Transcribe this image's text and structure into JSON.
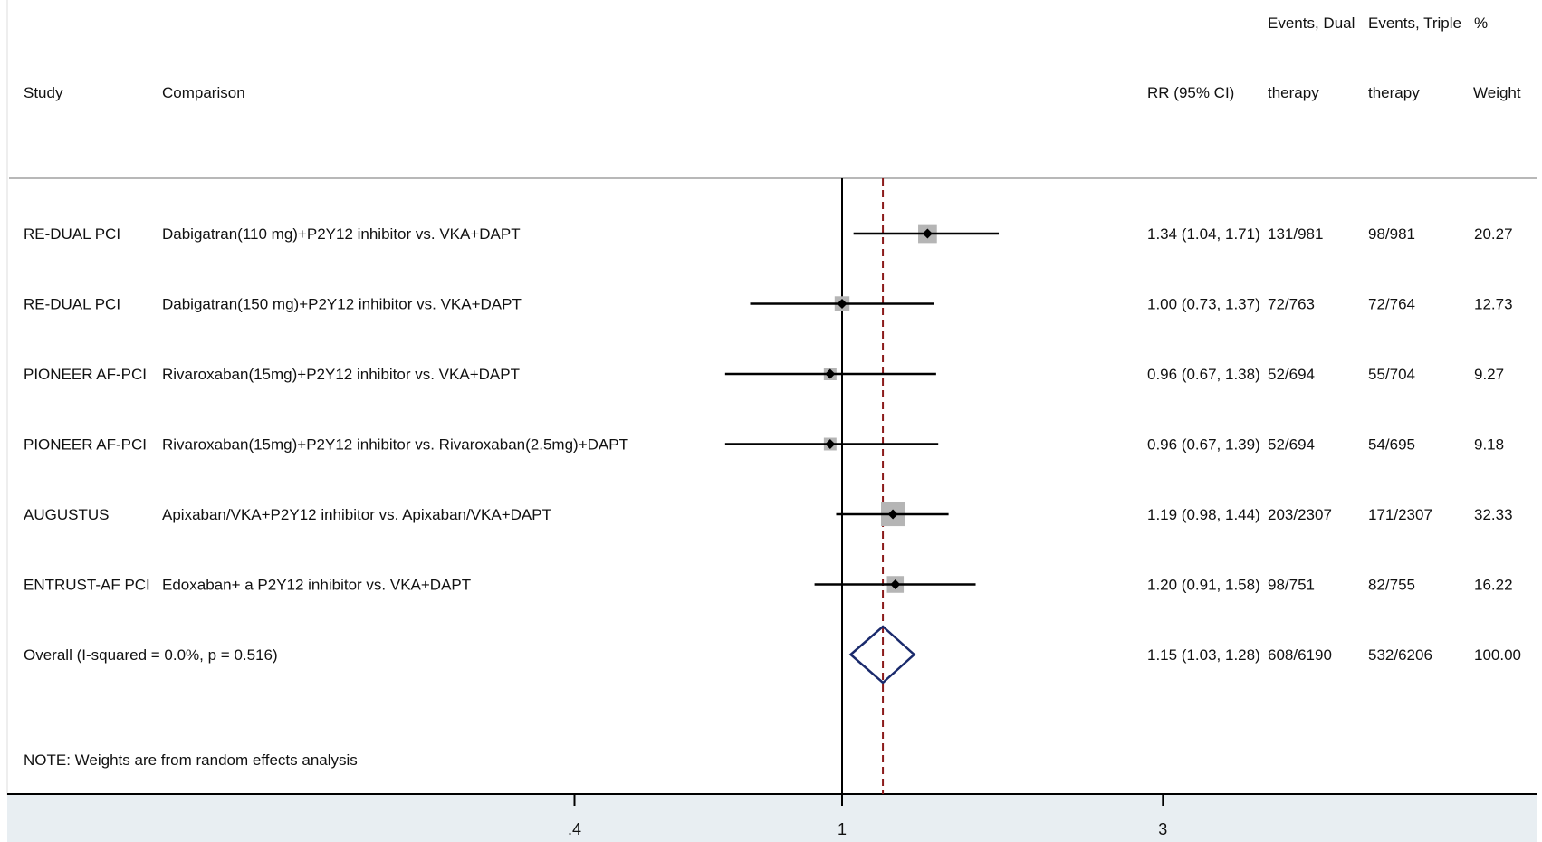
{
  "chart_data": {
    "type": "forest",
    "x_scale": "log",
    "xticks": [
      0.4,
      1,
      3
    ],
    "xtick_labels": [
      ".4",
      "1",
      "3"
    ],
    "null_value": 1,
    "overall_line": 1.15,
    "headers": {
      "study": "Study",
      "comparison": "Comparison",
      "rr": "RR (95% CI)",
      "dual_top": "Events, Dual",
      "dual_bottom": "therapy",
      "triple_top": "Events, Triple",
      "triple_bottom": "therapy",
      "weight_top": "%",
      "weight_bottom": "Weight"
    },
    "studies": [
      {
        "study": "RE-DUAL PCI",
        "comparison": "Dabigatran(110 mg)+P2Y12 inhibitor vs. VKA+DAPT",
        "rr_text": "1.34 (1.04, 1.71)",
        "dual": "131/981",
        "triple": "98/981",
        "weight_text": "20.27",
        "rr": 1.34,
        "lo": 1.04,
        "hi": 1.71,
        "weight": 20.27
      },
      {
        "study": "RE-DUAL PCI",
        "comparison": "Dabigatran(150 mg)+P2Y12 inhibitor vs. VKA+DAPT",
        "rr_text": "1.00 (0.73, 1.37)",
        "dual": "72/763",
        "triple": "72/764",
        "weight_text": "12.73",
        "rr": 1.0,
        "lo": 0.73,
        "hi": 1.37,
        "weight": 12.73
      },
      {
        "study": "PIONEER AF-PCI",
        "comparison": "Rivaroxaban(15mg)+P2Y12 inhibitor vs. VKA+DAPT",
        "rr_text": "0.96 (0.67, 1.38)",
        "dual": "52/694",
        "triple": "55/704",
        "weight_text": "9.27",
        "rr": 0.96,
        "lo": 0.67,
        "hi": 1.38,
        "weight": 9.27
      },
      {
        "study": "PIONEER AF-PCI",
        "comparison": "Rivaroxaban(15mg)+P2Y12 inhibitor vs. Rivaroxaban(2.5mg)+DAPT",
        "rr_text": "0.96 (0.67, 1.39)",
        "dual": "52/694",
        "triple": "54/695",
        "weight_text": "9.18",
        "rr": 0.96,
        "lo": 0.67,
        "hi": 1.39,
        "weight": 9.18
      },
      {
        "study": "AUGUSTUS",
        "comparison": "Apixaban/VKA+P2Y12 inhibitor vs. Apixaban/VKA+DAPT",
        "rr_text": "1.19 (0.98, 1.44)",
        "dual": "203/2307",
        "triple": "171/2307",
        "weight_text": "32.33",
        "rr": 1.19,
        "lo": 0.98,
        "hi": 1.44,
        "weight": 32.33
      },
      {
        "study": "ENTRUST-AF PCI",
        "comparison": "Edoxaban+ a P2Y12 inhibitor vs. VKA+DAPT",
        "rr_text": "1.20 (0.91, 1.58)",
        "dual": "98/751",
        "triple": "82/755",
        "weight_text": "16.22",
        "rr": 1.2,
        "lo": 0.91,
        "hi": 1.58,
        "weight": 16.22
      }
    ],
    "overall": {
      "label": "Overall  (I-squared = 0.0%, p = 0.516)",
      "rr_text": "1.15 (1.03, 1.28)",
      "dual": "608/6190",
      "triple": "532/6206",
      "weight_text": "100.00",
      "rr": 1.15,
      "lo": 1.03,
      "hi": 1.28
    },
    "note": "NOTE: Weights are from random effects analysis",
    "colors": {
      "ci": "#000000",
      "box": "#b5b5b5",
      "diamond": "#1a2a6c",
      "dashed": "#8b1a1a",
      "footer": "#e8eef2"
    }
  }
}
